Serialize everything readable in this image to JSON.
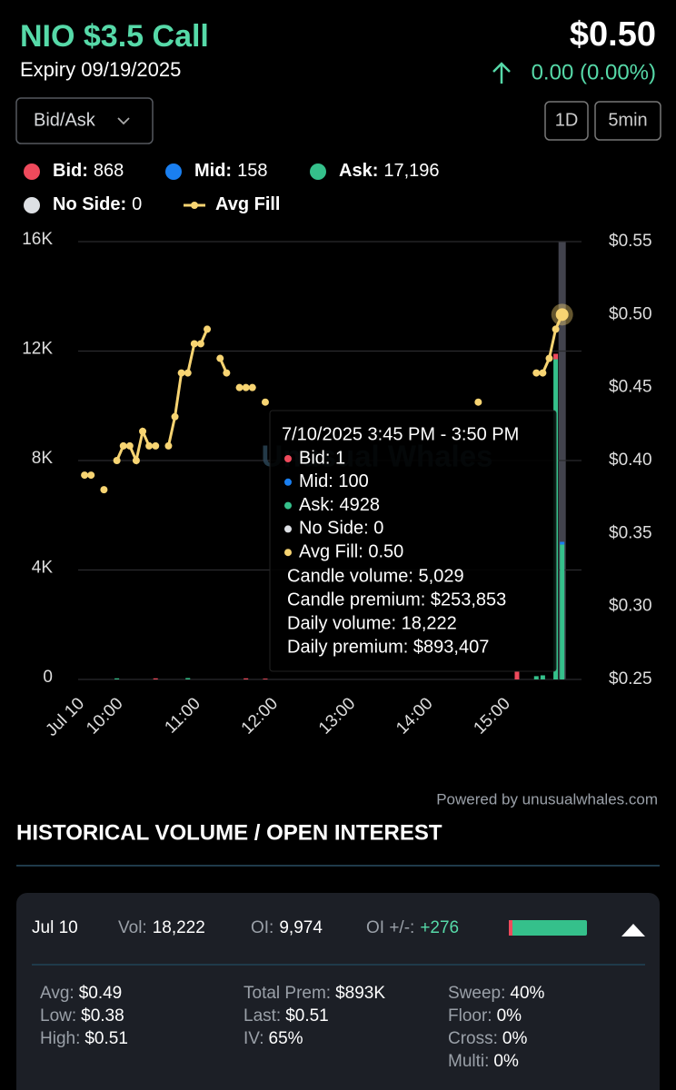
{
  "header": {
    "title": "NIO $3.5 Call",
    "expiry": "Expiry 09/19/2025",
    "price": "$0.50",
    "change": "0.00 (0.00%)"
  },
  "controls": {
    "dropdown": "Bid/Ask",
    "range": "1D",
    "interval": "5min"
  },
  "chart_data": {
    "type": "combo",
    "watermark": "Unusual Whales",
    "x": [
      "09:35",
      "09:40",
      "09:45",
      "09:50",
      "09:55",
      "10:00",
      "10:05",
      "10:10",
      "10:15",
      "10:20",
      "10:25",
      "10:30",
      "10:35",
      "10:40",
      "10:45",
      "10:50",
      "10:55",
      "11:00",
      "11:05",
      "11:10",
      "11:15",
      "11:20",
      "11:25",
      "11:30",
      "11:35",
      "11:40",
      "11:45",
      "11:50",
      "11:55",
      "12:00",
      "14:40",
      "14:45",
      "15:10",
      "15:25",
      "15:30",
      "15:35",
      "15:40",
      "15:45"
    ],
    "xlim": [
      "09:30",
      "16:00"
    ],
    "xticks": [
      {
        "value": "09:30",
        "label": "Jul 10"
      },
      "10:00",
      "11:00",
      "12:00",
      "13:00",
      "14:00",
      "15:00"
    ],
    "ylim": [
      0,
      16000
    ],
    "yticks": [
      0,
      {
        "value": 4000,
        "label": "4K"
      },
      {
        "value": 8000,
        "label": "8K"
      },
      {
        "value": 12000,
        "label": "12K"
      },
      {
        "value": 16000,
        "label": "16K"
      }
    ],
    "y2lim": [
      0.25,
      0.55
    ],
    "y2ticks": [
      {
        "value": 0.25,
        "label": "$0.25"
      },
      {
        "value": 0.3,
        "label": "$0.30"
      },
      {
        "value": 0.35,
        "label": "$0.35"
      },
      {
        "value": 0.4,
        "label": "$0.40"
      },
      {
        "value": 0.45,
        "label": "$0.45"
      },
      {
        "value": 0.5,
        "label": "$0.50"
      },
      {
        "value": 0.55,
        "label": "$0.55"
      }
    ],
    "grid": true,
    "series": [
      {
        "name": "Bid:",
        "total": "868",
        "color": "#ef4a5c",
        "values": [
          null,
          null,
          null,
          null,
          null,
          null,
          null,
          null,
          null,
          null,
          null,
          40,
          null,
          null,
          null,
          null,
          null,
          null,
          null,
          null,
          null,
          null,
          null,
          null,
          null,
          40,
          null,
          null,
          30,
          null,
          null,
          null,
          300,
          null,
          null,
          null,
          200,
          1
        ]
      },
      {
        "name": "Mid:",
        "total": "158",
        "color": "#1a7ff0",
        "values": [
          null,
          null,
          null,
          null,
          null,
          null,
          null,
          null,
          null,
          null,
          null,
          null,
          null,
          null,
          null,
          null,
          null,
          null,
          null,
          null,
          null,
          null,
          null,
          null,
          null,
          null,
          null,
          null,
          null,
          null,
          null,
          null,
          null,
          null,
          null,
          null,
          null,
          100
        ]
      },
      {
        "name": "Ask:",
        "total": "17,196",
        "color": "#35c08b",
        "values": [
          null,
          null,
          null,
          null,
          null,
          40,
          null,
          null,
          null,
          null,
          null,
          null,
          null,
          null,
          null,
          null,
          50,
          null,
          null,
          null,
          null,
          null,
          null,
          null,
          null,
          null,
          null,
          null,
          null,
          null,
          null,
          null,
          null,
          120,
          150,
          null,
          11700,
          4928
        ]
      },
      {
        "name": "No Side:",
        "total": "0",
        "color": "#dde0e4",
        "values": [
          null,
          null,
          null,
          null,
          null,
          null,
          null,
          null,
          null,
          null,
          null,
          null,
          null,
          null,
          null,
          null,
          null,
          null,
          null,
          null,
          null,
          null,
          null,
          null,
          null,
          null,
          null,
          null,
          null,
          null,
          null,
          null,
          null,
          null,
          null,
          null,
          null,
          0
        ]
      },
      {
        "name": "Avg Fill",
        "color": "#f7d472",
        "axis": "y2",
        "values": [
          0.39,
          0.39,
          null,
          0.38,
          null,
          0.4,
          0.41,
          0.41,
          0.4,
          0.42,
          0.41,
          0.41,
          null,
          0.41,
          0.43,
          0.46,
          0.46,
          0.48,
          0.48,
          0.49,
          null,
          0.47,
          0.46,
          null,
          0.45,
          0.45,
          0.45,
          null,
          0.44,
          null,
          0.44,
          null,
          null,
          0.46,
          0.46,
          0.47,
          0.49,
          0.5
        ]
      }
    ],
    "tooltip": {
      "title": "7/10/2025 3:45 PM - 3:50 PM",
      "items": [
        "Bid: 1",
        "Mid: 100",
        "Ask: 4928",
        "No Side: 0",
        "Avg Fill: 0.50"
      ],
      "totals": [
        "Candle volume: 5,029",
        "Candle premium: $253,853",
        "Daily volume: 18,222",
        "Daily premium: $893,407"
      ]
    }
  },
  "footer_note": "Powered by unusualwhales.com",
  "section": {
    "title": "HISTORICAL VOLUME / OPEN INTEREST",
    "row": {
      "date": "Jul 10",
      "vol_label": "Vol:",
      "vol": "18,222",
      "oi_label": "OI:",
      "oi": "9,974",
      "oi_change_label": "OI +/-:",
      "oi_change": "+276"
    },
    "details": [
      [
        {
          "label": "Avg:",
          "value": "$0.49"
        },
        {
          "label": "Low:",
          "value": "$0.38"
        },
        {
          "label": "High:",
          "value": "$0.51"
        }
      ],
      [
        {
          "label": "Total Prem:",
          "value": "$893K"
        },
        {
          "label": "Last:",
          "value": "$0.51"
        },
        {
          "label": "IV:",
          "value": "65%"
        }
      ],
      [
        {
          "label": "Sweep:",
          "value": "40%"
        },
        {
          "label": "Floor:",
          "value": "0%"
        },
        {
          "label": "Cross:",
          "value": "0%"
        },
        {
          "label": "Multi:",
          "value": "0%"
        }
      ]
    ]
  }
}
